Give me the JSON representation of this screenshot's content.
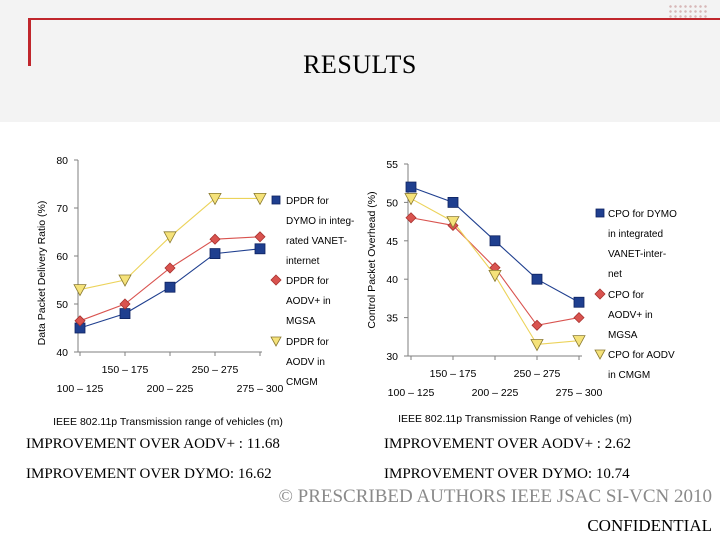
{
  "slide": {
    "title": "RESULTS",
    "stats": {
      "left_aodv": "IMPROVEMENT OVER AODV+ : 11.68",
      "left_dymo": "IMPROVEMENT OVER DYMO: 16.62",
      "right_aodv": "IMPROVEMENT OVER AODV+ : 2.62",
      "right_dymo": "IMPROVEMENT OVER DYMO: 10.74"
    },
    "copyright": "© PRESCRIBED AUTHORS IEEE JSAC SI-VCN 2010",
    "confidential": "CONFIDENTIAL"
  },
  "chart_data": [
    {
      "type": "line",
      "xlabel": "IEEE 802.11p Transmission range of vehicles (m)",
      "ylabel": "Data Packet Delivery Ratio (%)",
      "categories": [
        "100 – 125",
        "150 – 175",
        "200 – 225",
        "250 – 275",
        "275 – 300"
      ],
      "ylim": [
        40,
        80
      ],
      "yticks": [
        "40",
        "50",
        "60",
        "70",
        "80"
      ],
      "grid": false,
      "legend_position": "right",
      "series": [
        {
          "name": "DPDR for DYMO in integ- rated VANET- internet",
          "marker": "square",
          "color": "#1f3f8f",
          "values": [
            45,
            48,
            53.5,
            60.5,
            61.5
          ]
        },
        {
          "name": "DPDR for AODV+ in MGSA",
          "marker": "diamond",
          "color": "#d9534f",
          "values": [
            46.5,
            50,
            57.5,
            63.5,
            64
          ]
        },
        {
          "name": "DPDR for AODV in CMGM",
          "marker": "triangle",
          "color": "#ecd35a",
          "values": [
            53,
            55,
            64,
            72,
            72
          ]
        }
      ]
    },
    {
      "type": "line",
      "xlabel": "IEEE 802.11p Transmission Range of vehicles (m)",
      "ylabel": "Control Packet Overhead (%)",
      "categories": [
        "100 – 125",
        "150 – 175",
        "200 – 225",
        "250 – 275",
        "275 – 300"
      ],
      "ylim": [
        30,
        55
      ],
      "yticks": [
        "30",
        "35",
        "40",
        "45",
        "50",
        "55"
      ],
      "grid": false,
      "legend_position": "right",
      "series": [
        {
          "name": "CPO for DYMO in integrated VANET-inter- net",
          "marker": "square",
          "color": "#1f3f8f",
          "values": [
            52,
            50,
            45,
            40,
            37
          ]
        },
        {
          "name": "CPO for AODV+ in MGSA",
          "marker": "diamond",
          "color": "#d9534f",
          "values": [
            48,
            47,
            41.5,
            34,
            35
          ]
        },
        {
          "name": "CPO for AODV in CMGM",
          "marker": "triangle",
          "color": "#ecd35a",
          "values": [
            50.5,
            47.5,
            40.5,
            31.5,
            32
          ]
        }
      ]
    }
  ]
}
